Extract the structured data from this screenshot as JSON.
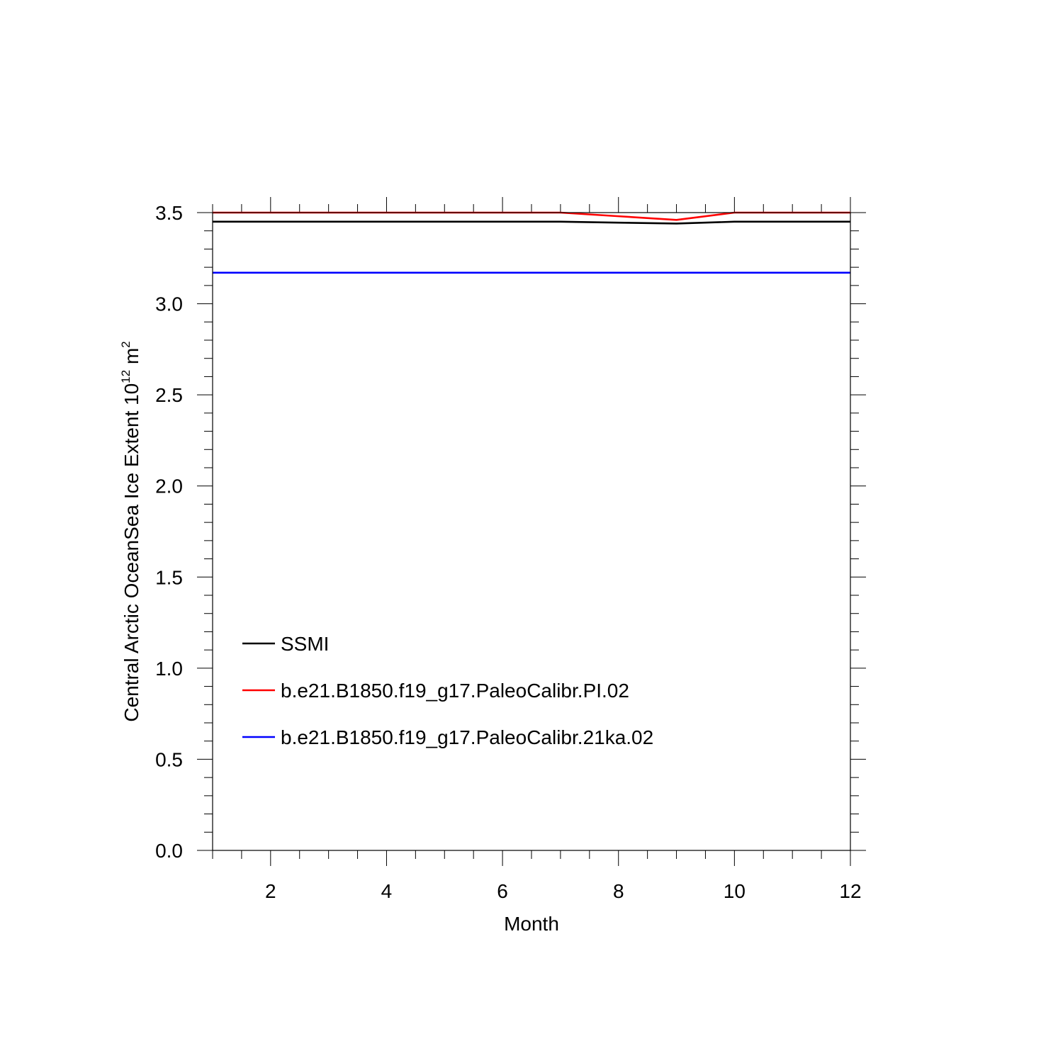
{
  "chart_data": {
    "type": "line",
    "title": "",
    "xlabel": "Month",
    "ylabel": "Central Arctic OceanSea Ice Extent 10",
    "ylabel_sup": "12",
    "ylabel_unit": " m",
    "ylabel_unit_sup": "2",
    "xlim": [
      1,
      12
    ],
    "ylim": [
      0,
      3.5
    ],
    "xticks": [
      2,
      4,
      6,
      8,
      10,
      12
    ],
    "xtick_labels": [
      "2",
      "4",
      "6",
      "8",
      "10",
      "12"
    ],
    "yticks": [
      0,
      0.5,
      1.0,
      1.5,
      2.0,
      2.5,
      3.0,
      3.5
    ],
    "ytick_labels": [
      "0.0",
      "0.5",
      "1.0",
      "1.5",
      "2.0",
      "2.5",
      "3.0",
      "3.5"
    ],
    "grid": false,
    "legend_position": "lower-left",
    "x": [
      1,
      2,
      3,
      4,
      5,
      6,
      7,
      8,
      9,
      10,
      11,
      12
    ],
    "series": [
      {
        "name": "SSMI",
        "color": "#000000",
        "values": [
          3.45,
          3.45,
          3.45,
          3.45,
          3.45,
          3.45,
          3.45,
          3.445,
          3.44,
          3.45,
          3.45,
          3.45
        ]
      },
      {
        "name": "b.e21.B1850.f19_g17.PaleoCalibr.PI.02",
        "color": "#ff0000",
        "values": [
          3.5,
          3.5,
          3.5,
          3.5,
          3.5,
          3.5,
          3.5,
          3.48,
          3.46,
          3.5,
          3.5,
          3.5
        ]
      },
      {
        "name": "b.e21.B1850.f19_g17.PaleoCalibr.21ka.02",
        "color": "#0000ff",
        "values": [
          3.17,
          3.17,
          3.17,
          3.17,
          3.17,
          3.17,
          3.17,
          3.17,
          3.17,
          3.17,
          3.17,
          3.17
        ]
      }
    ]
  }
}
